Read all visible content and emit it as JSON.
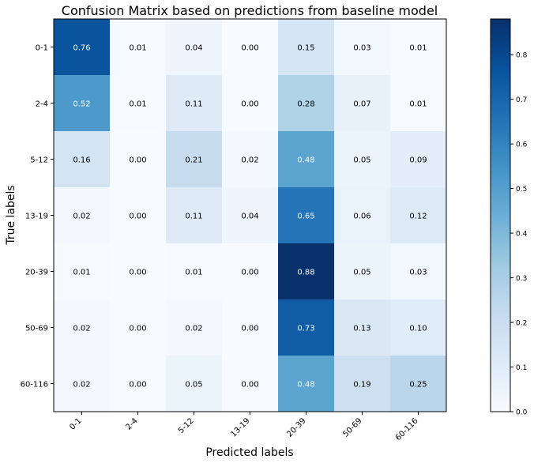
{
  "chart_data": {
    "type": "heatmap",
    "title": "Confusion Matrix based on predictions from baseline model",
    "xlabel": "Predicted labels",
    "ylabel": "True labels",
    "x_categories": [
      "0-1",
      "2-4",
      "5-12",
      "13-19",
      "20-39",
      "50-69",
      "60-116"
    ],
    "y_categories": [
      "0-1",
      "2-4",
      "5-12",
      "13-19",
      "20-39",
      "50-69",
      "60-116"
    ],
    "values": [
      [
        0.76,
        0.01,
        0.04,
        0.0,
        0.15,
        0.03,
        0.01
      ],
      [
        0.52,
        0.01,
        0.11,
        0.0,
        0.28,
        0.07,
        0.01
      ],
      [
        0.16,
        0.0,
        0.21,
        0.02,
        0.48,
        0.05,
        0.09
      ],
      [
        0.02,
        0.0,
        0.11,
        0.04,
        0.65,
        0.06,
        0.12
      ],
      [
        0.01,
        0.0,
        0.01,
        0.0,
        0.88,
        0.05,
        0.03
      ],
      [
        0.02,
        0.0,
        0.02,
        0.0,
        0.73,
        0.13,
        0.1
      ],
      [
        0.02,
        0.0,
        0.05,
        0.0,
        0.48,
        0.19,
        0.25
      ]
    ],
    "value_labels": [
      [
        "0.76",
        "0.01",
        "0.04",
        "0.00",
        "0.15",
        "0.03",
        "0.01"
      ],
      [
        "0.52",
        "0.01",
        "0.11",
        "0.00",
        "0.28",
        "0.07",
        "0.01"
      ],
      [
        "0.16",
        "0.00",
        "0.21",
        "0.02",
        "0.48",
        "0.05",
        "0.09"
      ],
      [
        "0.02",
        "0.00",
        "0.11",
        "0.04",
        "0.65",
        "0.06",
        "0.12"
      ],
      [
        "0.01",
        "0.00",
        "0.01",
        "0.00",
        "0.88",
        "0.05",
        "0.03"
      ],
      [
        "0.02",
        "0.00",
        "0.02",
        "0.00",
        "0.73",
        "0.13",
        "0.10"
      ],
      [
        "0.02",
        "0.00",
        "0.05",
        "0.00",
        "0.48",
        "0.19",
        "0.25"
      ]
    ],
    "colormap": "Blues",
    "colorbar": {
      "range": [
        0.0,
        0.88
      ],
      "ticks": [
        0.0,
        0.1,
        0.2,
        0.3,
        0.4,
        0.5,
        0.6,
        0.7,
        0.8
      ],
      "tick_labels": [
        "0.0",
        "0.1",
        "0.2",
        "0.3",
        "0.4",
        "0.5",
        "0.6",
        "0.7",
        "0.8"
      ]
    },
    "grid": false
  }
}
